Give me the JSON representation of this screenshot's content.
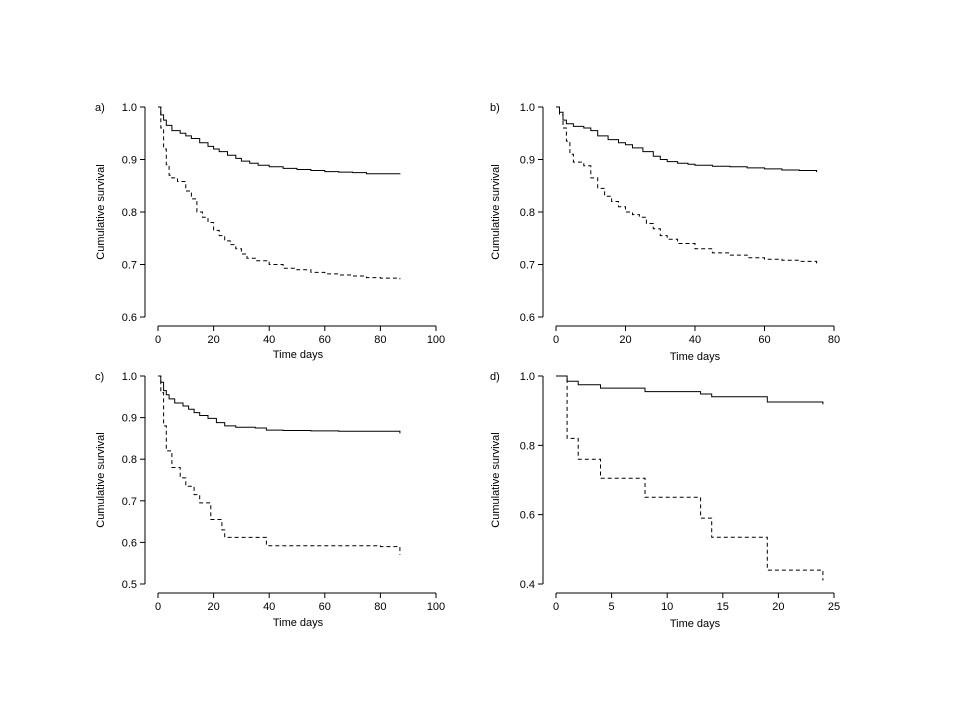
{
  "chart_data": [
    {
      "type": "line",
      "panel_label": "a)",
      "xlabel": "Time days",
      "ylabel": "Cumulative survival",
      "xlim": [
        0,
        100
      ],
      "ylim": [
        0.6,
        1.0
      ],
      "x_ticks": [
        0,
        20,
        40,
        60,
        80,
        100
      ],
      "y_ticks": [
        0.6,
        0.7,
        0.8,
        0.9,
        1.0
      ],
      "x_tick_labels": [
        "0",
        "20",
        "40",
        "60",
        "80",
        "100"
      ],
      "y_tick_labels": [
        "0.6",
        "0.7",
        "0.8",
        "0.9",
        "1.0"
      ],
      "grid": false,
      "step": true,
      "series": [
        {
          "line_style": "solid",
          "x": [
            0,
            1,
            2,
            3,
            5,
            8,
            10,
            12,
            15,
            18,
            20,
            22,
            25,
            28,
            30,
            33,
            36,
            40,
            45,
            50,
            55,
            60,
            65,
            70,
            75,
            80,
            87
          ],
          "y": [
            1.0,
            0.985,
            0.975,
            0.965,
            0.955,
            0.95,
            0.945,
            0.94,
            0.932,
            0.925,
            0.92,
            0.915,
            0.908,
            0.902,
            0.897,
            0.893,
            0.889,
            0.886,
            0.883,
            0.881,
            0.879,
            0.877,
            0.876,
            0.875,
            0.873,
            0.873,
            0.872
          ]
        },
        {
          "line_style": "dashed",
          "x": [
            0,
            1,
            2,
            3,
            4,
            5,
            7,
            10,
            12,
            14,
            16,
            18,
            20,
            22,
            24,
            26,
            28,
            30,
            32,
            35,
            40,
            45,
            50,
            55,
            60,
            65,
            70,
            75,
            80,
            87
          ],
          "y": [
            1.0,
            0.96,
            0.92,
            0.89,
            0.87,
            0.865,
            0.858,
            0.84,
            0.825,
            0.8,
            0.79,
            0.78,
            0.765,
            0.755,
            0.745,
            0.738,
            0.73,
            0.72,
            0.712,
            0.707,
            0.7,
            0.693,
            0.69,
            0.685,
            0.682,
            0.68,
            0.678,
            0.675,
            0.674,
            0.672
          ]
        }
      ]
    },
    {
      "type": "line",
      "panel_label": "b)",
      "xlabel": "Time days",
      "ylabel": "Cumulative survival",
      "xlim": [
        0,
        80
      ],
      "ylim": [
        0.6,
        1.0
      ],
      "x_ticks": [
        0,
        20,
        40,
        60,
        80
      ],
      "y_ticks": [
        0.6,
        0.7,
        0.8,
        0.9,
        1.0
      ],
      "x_tick_labels": [
        "0",
        "20",
        "40",
        "60",
        "80"
      ],
      "y_tick_labels": [
        "0.6",
        "0.7",
        "0.8",
        "0.9",
        "1.0"
      ],
      "grid": false,
      "step": true,
      "series": [
        {
          "line_style": "solid",
          "x": [
            0,
            1,
            2,
            3,
            5,
            8,
            10,
            12,
            15,
            18,
            20,
            22,
            25,
            28,
            30,
            32,
            35,
            38,
            40,
            45,
            50,
            55,
            60,
            65,
            70,
            75
          ],
          "y": [
            1.0,
            0.99,
            0.975,
            0.968,
            0.963,
            0.96,
            0.955,
            0.945,
            0.938,
            0.932,
            0.928,
            0.922,
            0.915,
            0.906,
            0.9,
            0.896,
            0.893,
            0.891,
            0.889,
            0.887,
            0.886,
            0.884,
            0.882,
            0.88,
            0.879,
            0.876
          ]
        },
        {
          "line_style": "dashed",
          "x": [
            0,
            1,
            2,
            3,
            4,
            5,
            8,
            10,
            12,
            14,
            16,
            18,
            20,
            22,
            24,
            26,
            28,
            30,
            32,
            35,
            40,
            45,
            50,
            55,
            60,
            65,
            70,
            75
          ],
          "y": [
            1.0,
            0.985,
            0.96,
            0.935,
            0.91,
            0.895,
            0.888,
            0.865,
            0.845,
            0.83,
            0.82,
            0.81,
            0.8,
            0.795,
            0.79,
            0.778,
            0.768,
            0.755,
            0.748,
            0.74,
            0.73,
            0.722,
            0.718,
            0.713,
            0.71,
            0.708,
            0.706,
            0.7
          ]
        }
      ]
    },
    {
      "type": "line",
      "panel_label": "c)",
      "xlabel": "Time days",
      "ylabel": "Cumulative survival",
      "xlim": [
        0,
        100
      ],
      "ylim": [
        0.5,
        1.0
      ],
      "x_ticks": [
        0,
        20,
        40,
        60,
        80,
        100
      ],
      "y_ticks": [
        0.5,
        0.6,
        0.7,
        0.8,
        0.9,
        1.0
      ],
      "x_tick_labels": [
        "0",
        "20",
        "40",
        "60",
        "80",
        "100"
      ],
      "y_tick_labels": [
        "0.5",
        "0.6",
        "0.7",
        "0.8",
        "0.9",
        "1.0"
      ],
      "grid": false,
      "step": true,
      "series": [
        {
          "line_style": "solid",
          "x": [
            0,
            1,
            2,
            3,
            4,
            6,
            9,
            11,
            13,
            15,
            18,
            21,
            24,
            28,
            35,
            39,
            45,
            55,
            65,
            75,
            85,
            87
          ],
          "y": [
            1.0,
            0.985,
            0.965,
            0.955,
            0.945,
            0.935,
            0.928,
            0.92,
            0.912,
            0.905,
            0.898,
            0.888,
            0.88,
            0.877,
            0.875,
            0.87,
            0.869,
            0.868,
            0.867,
            0.867,
            0.867,
            0.862
          ]
        },
        {
          "line_style": "dashed",
          "x": [
            0,
            1,
            2,
            3,
            5,
            8,
            10,
            13,
            15,
            19,
            23,
            24,
            39,
            50,
            60,
            70,
            80,
            87
          ],
          "y": [
            1.0,
            0.96,
            0.88,
            0.82,
            0.78,
            0.755,
            0.735,
            0.715,
            0.695,
            0.655,
            0.63,
            0.612,
            0.592,
            0.592,
            0.592,
            0.592,
            0.59,
            0.57
          ]
        }
      ]
    },
    {
      "type": "line",
      "panel_label": "d)",
      "xlabel": "Time days",
      "ylabel": "Cumulative survival",
      "xlim": [
        0,
        25
      ],
      "ylim": [
        0.4,
        1.0
      ],
      "x_ticks": [
        0,
        5,
        10,
        15,
        20,
        25
      ],
      "y_ticks": [
        0.4,
        0.6,
        0.8,
        1.0
      ],
      "x_tick_labels": [
        "0",
        "5",
        "10",
        "15",
        "20",
        "25"
      ],
      "y_tick_labels": [
        "0.4",
        "0.6",
        "0.8",
        "1.0"
      ],
      "grid": false,
      "step": true,
      "series": [
        {
          "line_style": "solid",
          "x": [
            0,
            1,
            2,
            4,
            8,
            13,
            14,
            19,
            24
          ],
          "y": [
            1.0,
            0.985,
            0.975,
            0.965,
            0.955,
            0.948,
            0.94,
            0.925,
            0.918
          ]
        },
        {
          "line_style": "dashed",
          "x": [
            0,
            1,
            2,
            4,
            8,
            13,
            14,
            19,
            24
          ],
          "y": [
            1.0,
            0.82,
            0.76,
            0.705,
            0.65,
            0.59,
            0.535,
            0.44,
            0.41
          ]
        }
      ]
    }
  ]
}
